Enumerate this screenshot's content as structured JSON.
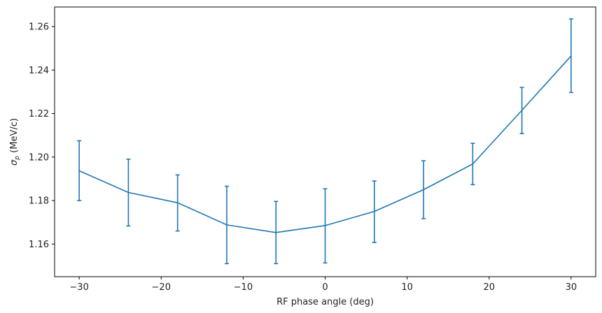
{
  "chart_data": {
    "type": "line",
    "title": "",
    "xlabel": "RF phase angle (deg)",
    "ylabel": "σ",
    "ylabel_sub": "p",
    "ylabel_unit": " (MeV/c)",
    "xlim": [
      -33,
      33
    ],
    "ylim": [
      1.145,
      1.269
    ],
    "xticks": [
      -30,
      -20,
      -10,
      0,
      10,
      20,
      30
    ],
    "xtick_labels": [
      "−30",
      "−20",
      "−10",
      "0",
      "10",
      "20",
      "30"
    ],
    "yticks": [
      1.16,
      1.18,
      1.2,
      1.22,
      1.24,
      1.26
    ],
    "ytick_labels": [
      "1.16",
      "1.18",
      "1.20",
      "1.22",
      "1.24",
      "1.26"
    ],
    "grid": false,
    "color": "#1f77b4",
    "series": [
      {
        "x": [
          -30,
          -24,
          -18,
          -12,
          -6,
          0,
          6,
          12,
          18,
          24,
          30
        ],
        "y": [
          1.1937,
          1.1837,
          1.179,
          1.1688,
          1.1653,
          1.1685,
          1.175,
          1.185,
          1.1968,
          1.2215,
          1.2465
        ],
        "err_low": [
          1.18,
          1.1683,
          1.166,
          1.151,
          1.151,
          1.1513,
          1.1607,
          1.1717,
          1.1873,
          1.2108,
          1.2297
        ],
        "err_high": [
          1.2075,
          1.199,
          1.1918,
          1.1866,
          1.1796,
          1.1854,
          1.189,
          1.1983,
          1.2063,
          1.232,
          1.2635
        ]
      }
    ]
  }
}
